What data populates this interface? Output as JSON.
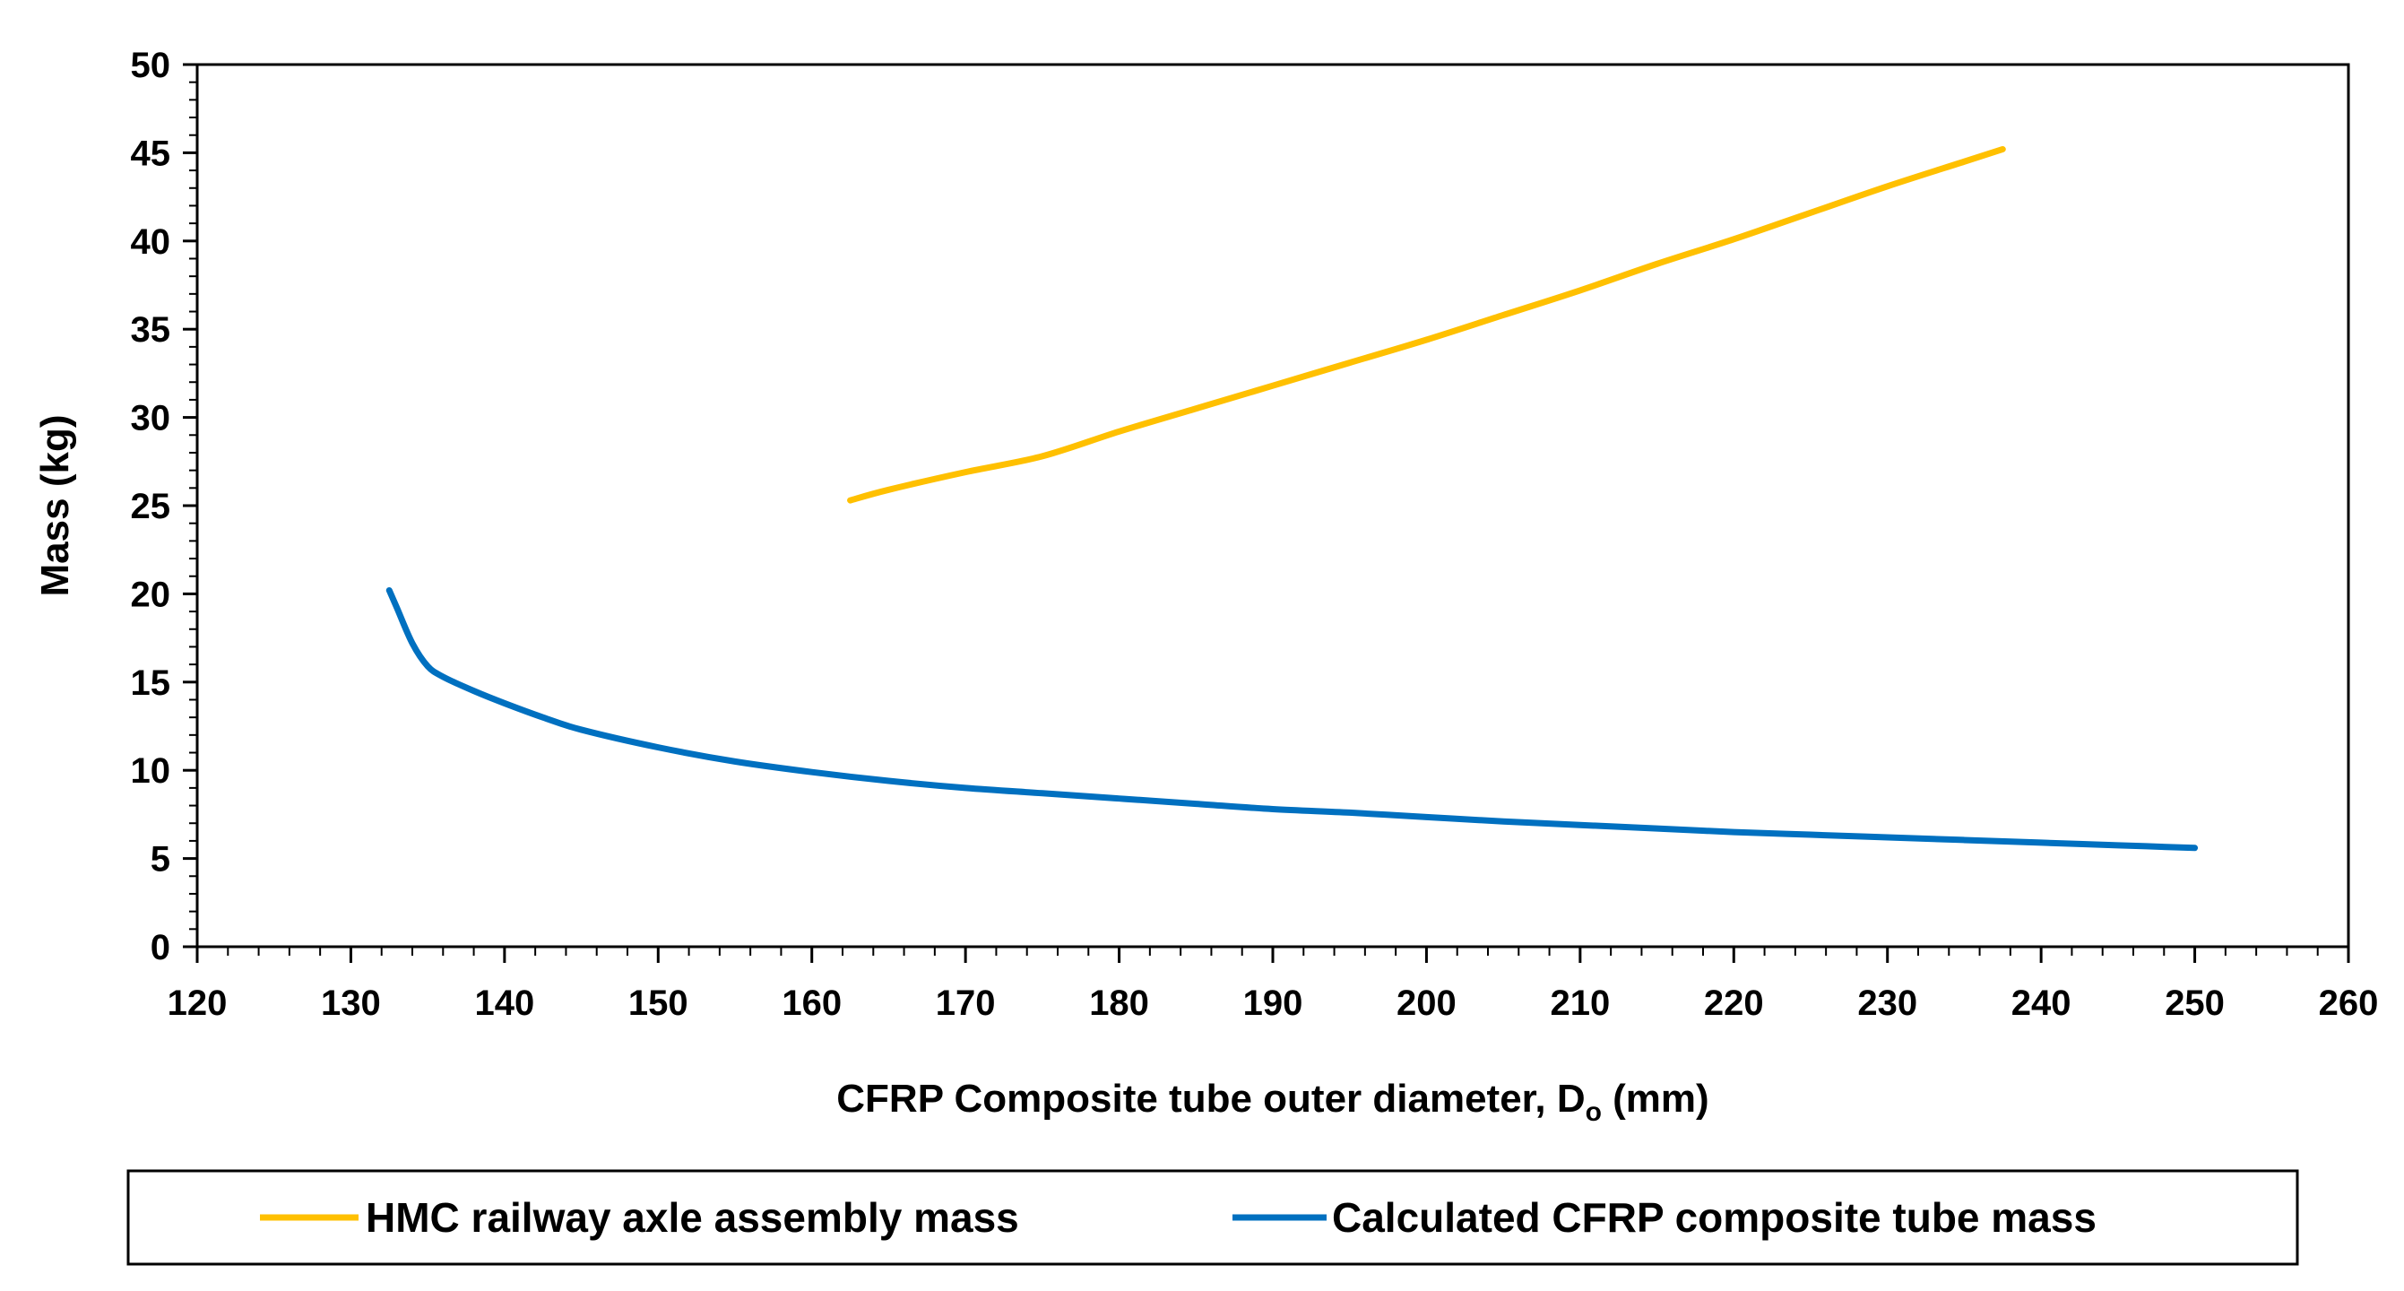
{
  "chart_data": {
    "type": "line",
    "title": "",
    "xlabel": {
      "main": "CFRP Composite tube outer diameter, D",
      "subscript": "o",
      "suffix": " (mm)"
    },
    "ylabel": "Mass (kg)",
    "xlim": [
      120,
      260
    ],
    "ylim": [
      0,
      50
    ],
    "xticks": [
      120,
      130,
      140,
      150,
      160,
      170,
      180,
      190,
      200,
      210,
      220,
      230,
      240,
      250,
      260
    ],
    "yticks": [
      0,
      5,
      10,
      15,
      20,
      25,
      30,
      35,
      40,
      45,
      50
    ],
    "x_minor_step": 2,
    "y_minor_step": 1,
    "grid": false,
    "legend_position": "bottom",
    "series": [
      {
        "name": "HMC railway axle assembly mass",
        "color": "#FFC000",
        "x": [
          162.5,
          165,
          170,
          175,
          180,
          185,
          190,
          195,
          200,
          205,
          210,
          215,
          220,
          225,
          230,
          235,
          237.5
        ],
        "y": [
          25.3,
          25.9,
          26.9,
          27.8,
          29.2,
          30.5,
          31.8,
          33.1,
          34.4,
          35.8,
          37.2,
          38.7,
          40.1,
          41.6,
          43.1,
          44.5,
          45.2
        ]
      },
      {
        "name": "Calculated CFRP composite tube mass",
        "color": "#0070C0",
        "x": [
          132.5,
          133,
          134,
          135,
          136,
          138,
          140,
          142.5,
          145,
          150,
          155,
          160,
          165,
          170,
          175,
          180,
          185,
          190,
          195,
          200,
          205,
          210,
          215,
          220,
          225,
          230,
          235,
          240,
          245,
          250
        ],
        "y": [
          20.2,
          19.2,
          17.2,
          15.9,
          15.3,
          14.5,
          13.8,
          13.0,
          12.3,
          11.3,
          10.5,
          9.9,
          9.4,
          9.0,
          8.7,
          8.4,
          8.1,
          7.8,
          7.6,
          7.35,
          7.1,
          6.9,
          6.7,
          6.5,
          6.35,
          6.2,
          6.05,
          5.9,
          5.75,
          5.6
        ]
      }
    ]
  }
}
